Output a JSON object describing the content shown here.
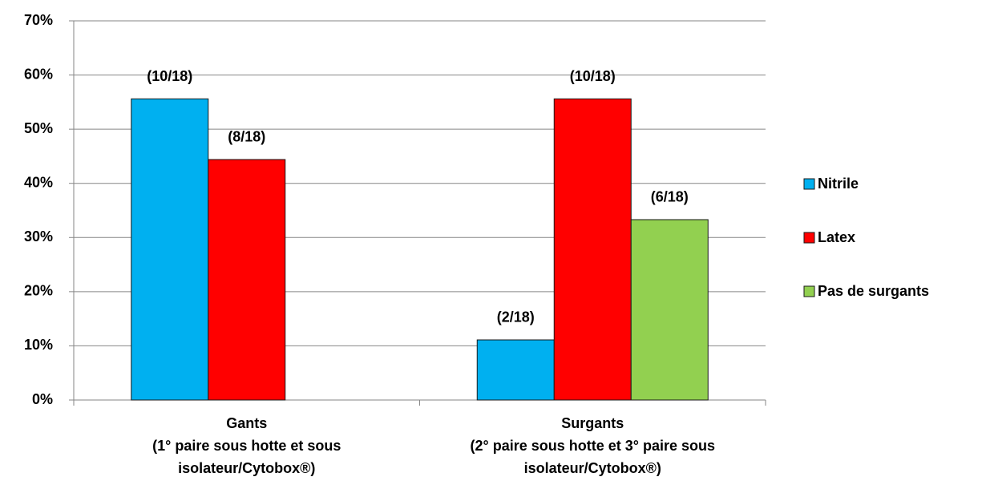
{
  "chart_data": {
    "type": "bar",
    "categories": [
      [
        "Gants",
        "(1° paire sous hotte et sous",
        "isolateur/Cytobox®)"
      ],
      [
        "Surgants",
        "(2° paire sous hotte et 3° paire sous",
        "isolateur/Cytobox®)"
      ]
    ],
    "series": [
      {
        "name": "Nitrile",
        "color": "#00b0f0",
        "values": [
          55.6,
          11.1
        ],
        "value_labels": [
          "(10/18)",
          "(2/18)"
        ]
      },
      {
        "name": "Latex",
        "color": "#ff0000",
        "values": [
          44.4,
          55.6
        ],
        "value_labels": [
          "(8/18)",
          "(10/18)"
        ]
      },
      {
        "name": "Pas de surgants",
        "color": "#92d050",
        "values": [
          null,
          33.3
        ],
        "value_labels": [
          null,
          "(6/18)"
        ]
      }
    ],
    "ylim": [
      0,
      70
    ],
    "yticks": [
      {
        "value": 0,
        "label": "0%"
      },
      {
        "value": 10,
        "label": "10%"
      },
      {
        "value": 20,
        "label": "20%"
      },
      {
        "value": 30,
        "label": "30%"
      },
      {
        "value": 40,
        "label": "40%"
      },
      {
        "value": 50,
        "label": "50%"
      },
      {
        "value": 60,
        "label": "60%"
      },
      {
        "value": 70,
        "label": "70%"
      }
    ],
    "grid": true,
    "legend": "right"
  }
}
